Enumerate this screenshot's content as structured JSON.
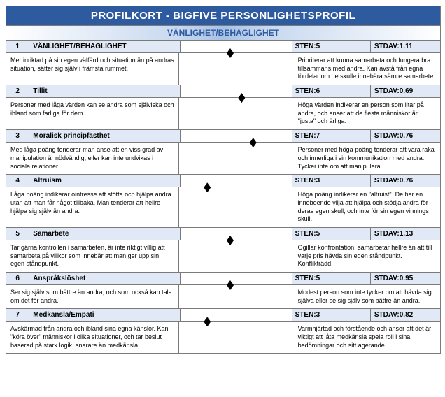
{
  "title": "PROFILKORT - BIGFIVE PERSONLIGHETSPROFIL",
  "subtitle": "VÄNLIGHET/BEHAGLIGHET",
  "sten_label": "STEN:",
  "stdav_label": "STDAV:",
  "scale_columns": 10,
  "traits": [
    {
      "num": "1",
      "name": "VÄNLIGHET/BEHAGLIGHET",
      "sten": "5",
      "stdav": "1.11",
      "marker_col": 5,
      "low": "Mer inriktad på sin egen välfärd och situation än på andras situation, sätter sig själv i främsta rummet.",
      "high": "Prioriterar att kunna samarbeta och fungera bra tillsammans med andra. Kan avstå från egna fördelar om de skulle innebära sämre samarbete."
    },
    {
      "num": "2",
      "name": "Tillit",
      "sten": "6",
      "stdav": "0.69",
      "marker_col": 6,
      "low": "Personer med låga värden kan se andra som själviska och ibland som farliga för dem.",
      "high": "Höga värden indikerar en person som litar på andra, och anser att de flesta människor är \"justa\" och ärliga."
    },
    {
      "num": "3",
      "name": "Moralisk principfasthet",
      "sten": "7",
      "stdav": "0.76",
      "marker_col": 7,
      "low": "Med låga poäng tenderar man anse att en viss grad av manipulation är nödvändig, eller kan inte undvikas i sociala relationer.",
      "high": "Personer med höga poäng tenderar att vara raka och innerliga i sin kommunikation med andra. Tycker inte om att manipulera."
    },
    {
      "num": "4",
      "name": "Altruism",
      "sten": "3",
      "stdav": "0.76",
      "marker_col": 3,
      "low": "Låga poäng indikerar ointresse att stötta och hjälpa andra utan att man får något tillbaka. Man tenderar att hellre hjälpa sig själv än andra.",
      "high": "Höga poäng indikerar en \"altruist\". De har en inneboende vilja att hjälpa och stödja andra för deras egen skull, och inte för sin egen vinnings skull."
    },
    {
      "num": "5",
      "name": "Samarbete",
      "sten": "5",
      "stdav": "1.13",
      "marker_col": 5,
      "low": "Tar gärna kontrollen i samarbeten, är inte riktigt villig att samarbeta på villkor som innebär att man ger upp sin egen ståndpunkt.",
      "high": "Ogillar konfrontation, samarbetar hellre än att till varje pris hävda sin egen ståndpunkt. Konflikträdd."
    },
    {
      "num": "6",
      "name": "Anspråkslöshet",
      "sten": "5",
      "stdav": "0.95",
      "marker_col": 5,
      "low": "Ser sig själv som bättre än andra, och som också kan tala om det för andra.",
      "high": "Modest person som inte tycker om att hävda sig själva eller se sig själv som bättre än andra."
    },
    {
      "num": "7",
      "name": "Medkänsla/Empati",
      "sten": "3",
      "stdav": "0.82",
      "marker_col": 3,
      "low": "Avskärmad från andra och ibland sina egna känslor. Kan \"köra över\" människor i olika situationer, och tar beslut baserad på stark logik, snarare än medkänsla.",
      "high": "Varmhjärtad och förstående och anser att det är viktigt att låta medkänsla spela roll i sina bedömningar och sitt agerande."
    }
  ]
}
